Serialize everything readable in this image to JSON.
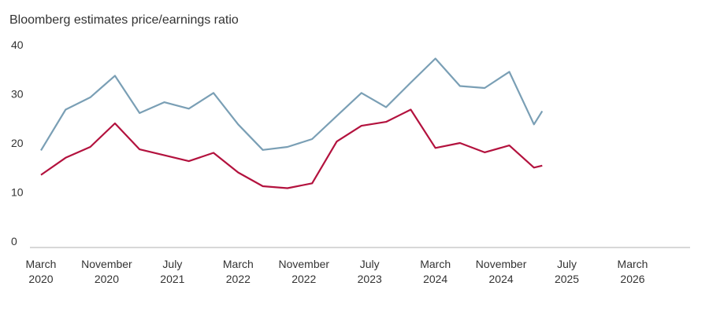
{
  "chart_data": {
    "type": "line",
    "title": "Bloomberg estimates price/earnings ratio",
    "xlabel": "",
    "ylabel": "",
    "ylim": [
      0,
      40
    ],
    "yticks": [
      0,
      10,
      20,
      30,
      40
    ],
    "x_tick_labels": [
      {
        "month": "March",
        "year": "2020",
        "t": 0
      },
      {
        "month": "November",
        "year": "2020",
        "t": 8
      },
      {
        "month": "July",
        "year": "2021",
        "t": 16
      },
      {
        "month": "March",
        "year": "2022",
        "t": 24
      },
      {
        "month": "November",
        "year": "2022",
        "t": 32
      },
      {
        "month": "July",
        "year": "2023",
        "t": 40
      },
      {
        "month": "March",
        "year": "2024",
        "t": 48
      },
      {
        "month": "November",
        "year": "2024",
        "t": 56
      },
      {
        "month": "July",
        "year": "2025",
        "t": 64
      },
      {
        "month": "March",
        "year": "2026",
        "t": 72
      }
    ],
    "x_range": [
      0,
      79
    ],
    "grid": false,
    "series": [
      {
        "color": "#7a9fb5",
        "x": [
          0,
          3,
          6,
          9,
          12,
          15,
          18,
          21,
          24,
          27,
          30,
          33,
          36,
          39,
          42,
          45,
          48,
          51,
          54,
          57,
          60,
          61
        ],
        "values": [
          18.5,
          26.8,
          29.3,
          33.7,
          26.1,
          28.3,
          27.0,
          30.2,
          23.8,
          18.6,
          19.2,
          20.8,
          25.5,
          30.2,
          27.3,
          32.3,
          37.2,
          31.6,
          31.2,
          34.5,
          23.8,
          26.5
        ]
      },
      {
        "color": "#b3123e",
        "x": [
          0,
          3,
          6,
          9,
          12,
          15,
          18,
          21,
          24,
          27,
          30,
          33,
          36,
          39,
          42,
          45,
          48,
          51,
          54,
          57,
          60,
          61
        ],
        "values": [
          13.5,
          17.0,
          19.2,
          24.0,
          18.7,
          17.5,
          16.3,
          18.0,
          14.0,
          11.2,
          10.8,
          11.8,
          20.3,
          23.5,
          24.3,
          26.8,
          19.0,
          20.0,
          18.1,
          19.5,
          15.0,
          15.4
        ]
      }
    ]
  }
}
